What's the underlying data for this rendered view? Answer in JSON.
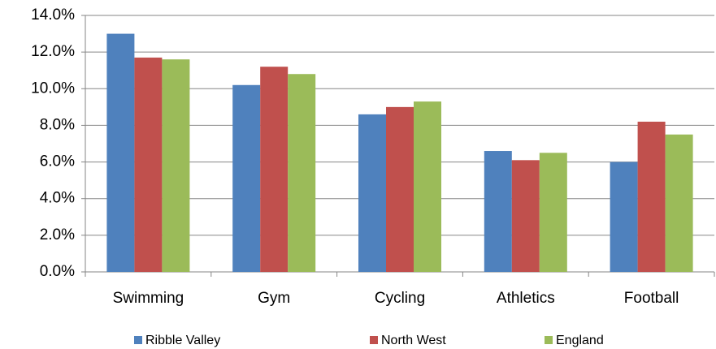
{
  "chart_data": {
    "type": "bar",
    "categories": [
      "Swimming",
      "Gym",
      "Cycling",
      "Athletics",
      "Football"
    ],
    "series": [
      {
        "name": "Ribble Valley",
        "color": "#4f81bd",
        "values": [
          13.0,
          10.2,
          8.6,
          6.6,
          6.0
        ]
      },
      {
        "name": "North West",
        "color": "#c0504d",
        "values": [
          11.7,
          11.2,
          9.0,
          6.1,
          8.2
        ]
      },
      {
        "name": "England",
        "color": "#9bbb59",
        "values": [
          11.6,
          10.8,
          9.3,
          6.5,
          7.5
        ]
      }
    ],
    "ylim": [
      0,
      14
    ],
    "yticks": [
      {
        "value": 0,
        "label": "0.0%"
      },
      {
        "value": 2,
        "label": "2.0%"
      },
      {
        "value": 4,
        "label": "4.0%"
      },
      {
        "value": 6,
        "label": "6.0%"
      },
      {
        "value": 8,
        "label": "8.0%"
      },
      {
        "value": 10,
        "label": "10.0%"
      },
      {
        "value": 12,
        "label": "12.0%"
      },
      {
        "value": 14,
        "label": "14.0%"
      }
    ],
    "grid": true,
    "legend": "bottom"
  }
}
